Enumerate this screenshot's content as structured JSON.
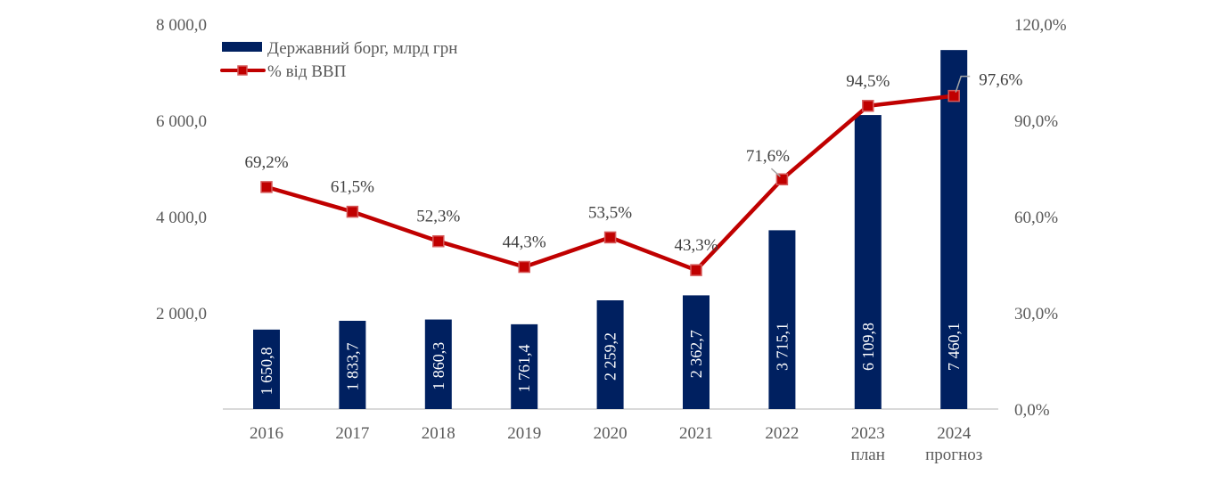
{
  "chart_data": {
    "type": "bar+line",
    "title": "",
    "categories": [
      [
        "2016"
      ],
      [
        "2017"
      ],
      [
        "2018"
      ],
      [
        "2019"
      ],
      [
        "2020"
      ],
      [
        "2021"
      ],
      [
        "2022"
      ],
      [
        "2023",
        "план"
      ],
      [
        "2024",
        "прогноз"
      ]
    ],
    "series": [
      {
        "name": "Державний борг, млрд грн",
        "type": "bar",
        "axis": "left",
        "color": "#002060",
        "values": [
          1650.8,
          1833.7,
          1860.3,
          1761.4,
          2259.2,
          2362.7,
          3715.1,
          6109.8,
          7460.1
        ],
        "labels": [
          "1 650,8",
          "1 833,7",
          "1 860,3",
          "1 761,4",
          "2 259,2",
          "2 362,7",
          "3 715,1",
          "6 109,8",
          "7 460,1"
        ]
      },
      {
        "name": "% від ВВП",
        "type": "line",
        "axis": "right",
        "color": "#C00000",
        "values": [
          69.2,
          61.5,
          52.3,
          44.3,
          53.5,
          43.3,
          71.6,
          94.5,
          97.6
        ],
        "labels": [
          "69,2%",
          "61,5%",
          "52,3%",
          "44,3%",
          "53,5%",
          "43,3%",
          "71,6%",
          "94,5%",
          "97,6%"
        ]
      }
    ],
    "left_axis": {
      "range": [
        0,
        8000
      ],
      "ticks": [
        2000,
        4000,
        6000,
        8000
      ],
      "tick_labels": [
        "2 000,0",
        "4 000,0",
        "6 000,0",
        "8 000,0"
      ]
    },
    "right_axis": {
      "range": [
        0,
        120
      ],
      "ticks": [
        0,
        30,
        60,
        90,
        120
      ],
      "tick_labels": [
        "0,0%",
        "30,0%",
        "60,0%",
        "90,0%",
        "120,0%"
      ]
    },
    "legend": {
      "position": "top-left",
      "entries": [
        "Державний борг, млрд грн",
        "% від ВВП"
      ]
    },
    "grid": false
  }
}
